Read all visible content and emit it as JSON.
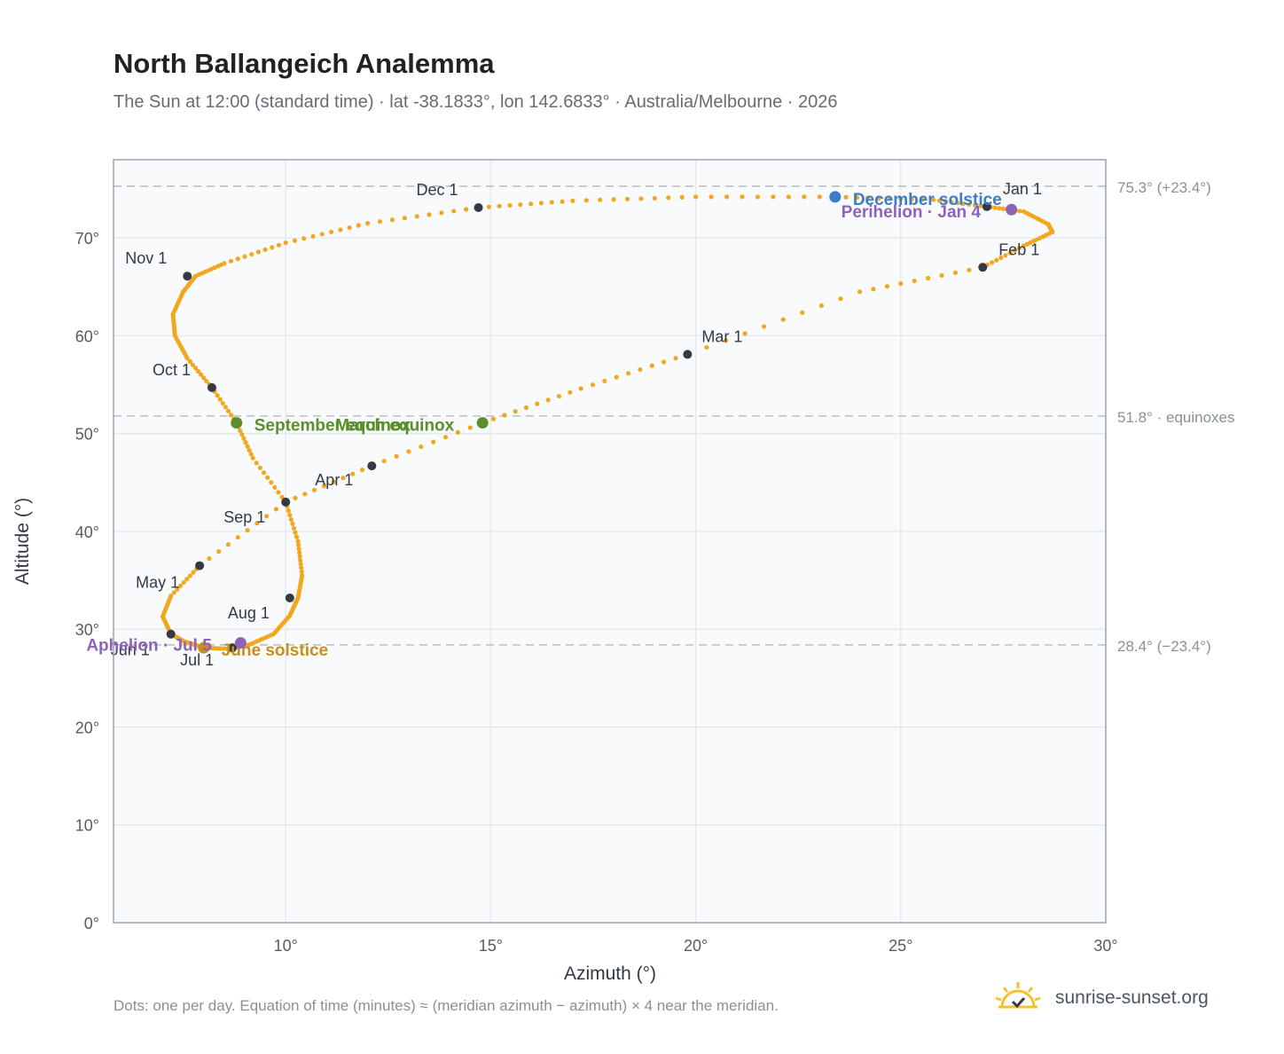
{
  "header": {
    "title": "North Ballangeich Analemma",
    "subtitle": "The Sun at 12:00 (standard time) · lat -38.1833°, lon 142.6833° · Australia/Melbourne · 2026"
  },
  "footer": {
    "note": "Dots: one per day. Equation of time (minutes) ≈ (meridian azimuth − azimuth) × 4 near the meridian.",
    "brand": "sunrise-sunset.org"
  },
  "colors": {
    "path": "#f0a81f",
    "month_marker": "#333a45",
    "equinox": "#5a8f2a",
    "december_solstice": "#3d7cc9",
    "june_solstice": "#c8901a",
    "perihelion_aphelion": "#8e64b8",
    "reference_line": "#b8bfc7",
    "plot_background": "#f8fafc"
  },
  "chart_data": {
    "type": "scatter",
    "xlabel": "Azimuth (°)",
    "ylabel": "Altitude (°)",
    "xlim": [
      5.8,
      30
    ],
    "ylim": [
      0,
      78
    ],
    "xticks": [
      10,
      15,
      20,
      25,
      30
    ],
    "xtick_labels": [
      "10°",
      "15°",
      "20°",
      "25°",
      "30°"
    ],
    "yticks": [
      0,
      10,
      20,
      30,
      40,
      50,
      60,
      70
    ],
    "ytick_labels": [
      "0°",
      "10°",
      "20°",
      "30°",
      "40°",
      "50°",
      "60°",
      "70°"
    ],
    "grid": true,
    "path_points": [
      [
        27.1,
        73.2
      ],
      [
        28.0,
        72.7
      ],
      [
        28.6,
        71.4
      ],
      [
        28.7,
        70.6
      ],
      [
        28.0,
        69.2
      ],
      [
        27.0,
        67.0
      ],
      [
        24.0,
        64.5
      ],
      [
        19.8,
        58.1
      ],
      [
        17.2,
        54.6
      ],
      [
        14.8,
        51.1
      ],
      [
        12.1,
        46.7
      ],
      [
        10.0,
        43.0
      ],
      [
        7.9,
        36.5
      ],
      [
        7.2,
        33.4
      ],
      [
        7.0,
        31.3
      ],
      [
        7.2,
        29.5
      ],
      [
        7.5,
        28.8
      ],
      [
        8.0,
        28.1
      ],
      [
        8.6,
        28.0
      ],
      [
        9.1,
        28.4
      ],
      [
        9.7,
        29.5
      ],
      [
        10.1,
        31.4
      ],
      [
        10.3,
        33.2
      ],
      [
        10.4,
        35.5
      ],
      [
        10.3,
        39.0
      ],
      [
        10.0,
        43.0
      ],
      [
        9.2,
        47.5
      ],
      [
        8.8,
        51.1
      ],
      [
        8.2,
        54.7
      ],
      [
        7.6,
        57.7
      ],
      [
        7.3,
        60.0
      ],
      [
        7.25,
        62.2
      ],
      [
        7.5,
        64.5
      ],
      [
        7.8,
        66.1
      ],
      [
        8.5,
        67.4
      ],
      [
        10.0,
        69.5
      ],
      [
        12.0,
        71.5
      ],
      [
        14.7,
        73.1
      ],
      [
        17.0,
        73.8
      ],
      [
        20.0,
        74.2
      ],
      [
        23.4,
        74.2
      ],
      [
        25.8,
        73.9
      ],
      [
        27.1,
        73.2
      ]
    ],
    "month_markers": [
      {
        "label": "Jan 1",
        "az": 27.1,
        "alt": 73.2,
        "label_dx": 18,
        "label_dy": -14
      },
      {
        "label": "Feb 1",
        "az": 27.0,
        "alt": 67.0,
        "label_dx": 18,
        "label_dy": -14
      },
      {
        "label": "Mar 1",
        "az": 19.8,
        "alt": 58.1,
        "label_dx": 16,
        "label_dy": -14
      },
      {
        "label": "Apr 1",
        "az": 12.1,
        "alt": 46.7,
        "label_dx": -64,
        "label_dy": 22
      },
      {
        "label": "May 1",
        "az": 7.9,
        "alt": 36.5,
        "label_dx": -72,
        "label_dy": 25
      },
      {
        "label": "Jun 1",
        "az": 7.2,
        "alt": 29.5,
        "label_dx": -68,
        "label_dy": 24
      },
      {
        "label": "Jul 1",
        "az": 8.7,
        "alt": 28.1,
        "label_dx": -59,
        "label_dy": 20
      },
      {
        "label": "Aug 1",
        "az": 10.1,
        "alt": 33.2,
        "label_dx": -70,
        "label_dy": 23
      },
      {
        "label": "Sep 1",
        "az": 10.0,
        "alt": 43.0,
        "label_dx": -70,
        "label_dy": 23
      },
      {
        "label": "Oct 1",
        "az": 8.2,
        "alt": 54.7,
        "label_dx": -67,
        "label_dy": -14
      },
      {
        "label": "Nov 1",
        "az": 7.6,
        "alt": 66.1,
        "label_dx": -70,
        "label_dy": -14
      },
      {
        "label": "Dec 1",
        "az": 14.7,
        "alt": 73.1,
        "label_dx": -70,
        "label_dy": -14
      }
    ],
    "events": [
      {
        "label": "March equinox",
        "az": 14.8,
        "alt": 51.1,
        "color": "#5a8f2a",
        "label_dx": -166,
        "label_dy": 9
      },
      {
        "label": "September equinox",
        "az": 8.8,
        "alt": 51.1,
        "color": "#5a8f2a",
        "label_dx": 20,
        "label_dy": 9
      },
      {
        "label": "December solstice",
        "az": 23.4,
        "alt": 74.2,
        "color": "#3d7cc9",
        "label_dx": 20,
        "label_dy": 9
      },
      {
        "label": "June solstice",
        "az": 8.0,
        "alt": 28.1,
        "color": "#c8901a",
        "label_dx": 20,
        "label_dy": 9
      },
      {
        "label": "Perihelion · Jan 4",
        "az": 27.7,
        "alt": 72.9,
        "color": "#8e64b8",
        "label_dx": -192,
        "label_dy": 9
      },
      {
        "label": "Aphelion · Jul 5",
        "az": 8.9,
        "alt": 28.6,
        "color": "#8e64b8",
        "label_dx": -174,
        "label_dy": 9
      }
    ],
    "reference_lines": [
      {
        "alt": 75.3,
        "label": "75.3° (+23.4°)"
      },
      {
        "alt": 51.8,
        "label": "51.8° · equinoxes"
      },
      {
        "alt": 28.4,
        "label": "28.4° (−23.4°)"
      }
    ]
  }
}
